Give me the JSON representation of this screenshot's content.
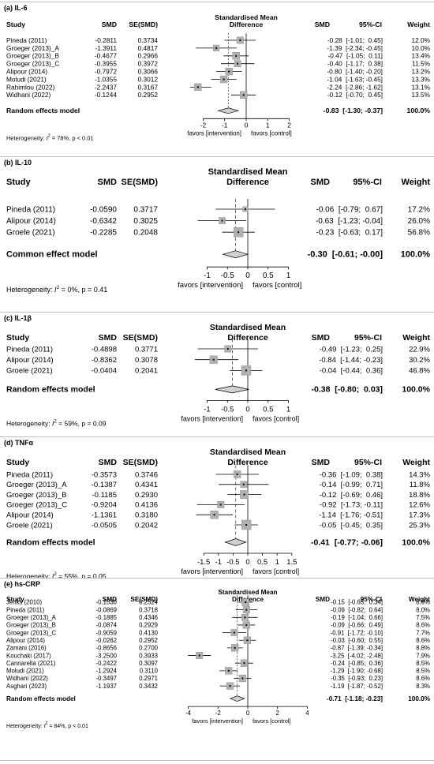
{
  "figure": {
    "title": ""
  },
  "columns": {
    "study": "Study",
    "smd": "SMD",
    "se": "SE(SMD)",
    "header_line1": "Standardised Mean",
    "header_line2": "Difference",
    "smd_ci": "SMD",
    "ci": "95%-CI",
    "weight": "Weight"
  },
  "chart_data": [
    {
      "type": "forest",
      "label": "(a) IL-6",
      "header_line1": "Standardised Mean",
      "header_line2": "Difference",
      "studies": [
        {
          "study": "Pineda (2011)",
          "smd": "-0.2811",
          "se": "0.3734",
          "est": -0.28,
          "lo": -1.01,
          "hi": 0.45,
          "ci_text": "-0.28  [-1.01;  0.45]",
          "weight": "12.0%",
          "w": 12.0
        },
        {
          "study": "Groeger (2013)_A",
          "smd": "-1.3911",
          "se": "0.4817",
          "est": -1.39,
          "lo": -2.34,
          "hi": -0.45,
          "ci_text": "-1.39  [-2.34; -0.45]",
          "weight": "10.0%",
          "w": 10.0
        },
        {
          "study": "Groeger (2013)_B",
          "smd": "-0.4677",
          "se": "0.2966",
          "est": -0.47,
          "lo": -1.05,
          "hi": 0.11,
          "ci_text": "-0.47  [-1.05;  0.11]",
          "weight": "13.4%",
          "w": 13.4
        },
        {
          "study": "Groeger (2013)_C",
          "smd": "-0.3955",
          "se": "0.3972",
          "est": -0.4,
          "lo": -1.17,
          "hi": 0.38,
          "ci_text": "-0.40  [-1.17;  0.38]",
          "weight": "11.5%",
          "w": 11.5
        },
        {
          "study": "Alipour (2014)",
          "smd": "-0.7972",
          "se": "0.3066",
          "est": -0.8,
          "lo": -1.4,
          "hi": -0.2,
          "ci_text": "-0.80  [-1.40; -0.20]",
          "weight": "13.2%",
          "w": 13.2
        },
        {
          "study": "Moludi (2021)",
          "smd": "-1.0355",
          "se": "0.3012",
          "est": -1.04,
          "lo": -1.63,
          "hi": -0.45,
          "ci_text": "-1.04  [-1.63; -0.45]",
          "weight": "13.3%",
          "w": 13.3
        },
        {
          "study": "Rahimlou (2022)",
          "smd": "-2.2437",
          "se": "0.3167",
          "est": -2.24,
          "lo": -2.86,
          "hi": -1.62,
          "ci_text": "-2.24  [-2.86; -1.62]",
          "weight": "13.1%",
          "w": 13.1
        },
        {
          "study": "Widhani (2022)",
          "smd": "-0.1244",
          "se": "0.2952",
          "est": -0.12,
          "lo": -0.7,
          "hi": 0.45,
          "ci_text": "-0.12  [-0.70;  0.45]",
          "weight": "13.5%",
          "w": 13.5
        }
      ],
      "pooled": {
        "label": "Random effects model",
        "est": -0.83,
        "lo": -1.3,
        "hi": -0.37,
        "ci_text": "-0.83  [-1.30; -0.37]",
        "weight": "100.0%"
      },
      "xlim": [
        -2.6,
        2.6
      ],
      "ticks": [
        -2,
        -1,
        0,
        1,
        2
      ],
      "favors_left": "favors [intervention]",
      "favors_right": "favors [control]",
      "heterogeneity_prefix": "Heterogeneity: ",
      "heterogeneity_stat": "I",
      "heterogeneity_sup": "2",
      "heterogeneity_rest": " = 78%, p < 0.01",
      "i2": 78,
      "p": "< 0.01",
      "dashed_ref": false
    },
    {
      "type": "forest",
      "label": "(b) IL-10",
      "header_line1": "Standardised Mean",
      "header_line2": "Difference",
      "studies": [
        {
          "study": "Pineda (2011)",
          "smd": "-0.0590",
          "se": "0.3717",
          "est": -0.06,
          "lo": -0.79,
          "hi": 0.67,
          "ci_text": "-0.06  [-0.79;  0.67]",
          "weight": "17.2%",
          "w": 17.2
        },
        {
          "study": "Alipour (2014)",
          "smd": "-0.6342",
          "se": "0.3025",
          "est": -0.63,
          "lo": -1.23,
          "hi": -0.04,
          "ci_text": "-0.63  [-1.23; -0.04]",
          "weight": "26.0%",
          "w": 26.0
        },
        {
          "study": "Groele (2021)",
          "smd": "-0.2285",
          "se": "0.2048",
          "est": -0.23,
          "lo": -0.63,
          "hi": 0.17,
          "ci_text": "-0.23  [-0.63;  0.17]",
          "weight": "56.8%",
          "w": 56.8
        }
      ],
      "pooled": {
        "label": "Common effect model",
        "est": -0.3,
        "lo": -0.61,
        "hi": -0.0,
        "ci_text": "-0.30  [-0.61; -0.00]",
        "weight": "100.0%"
      },
      "xlim": [
        -1.3,
        1.3
      ],
      "ticks": [
        -1,
        -0.5,
        0,
        0.5,
        1
      ],
      "favors_left": "favors [intervention]",
      "favors_right": "favors [control]",
      "heterogeneity_prefix": "Heterogeneity: ",
      "heterogeneity_stat": "I",
      "heterogeneity_sup": "2",
      "heterogeneity_rest": " = 0%, p = 0.41",
      "i2": 0,
      "p": "0.41",
      "dashed_ref": true
    },
    {
      "type": "forest",
      "label": "(c) IL-1β",
      "header_line1": "Standardised Mean",
      "header_line2": "Difference",
      "studies": [
        {
          "study": "Pineda (2011)",
          "smd": "-0.4898",
          "se": "0.3771",
          "est": -0.49,
          "lo": -1.23,
          "hi": 0.25,
          "ci_text": "-0.49  [-1.23;  0.25]",
          "weight": "22.9%",
          "w": 22.9
        },
        {
          "study": "Alipour (2014)",
          "smd": "-0.8362",
          "se": "0.3078",
          "est": -0.84,
          "lo": -1.44,
          "hi": -0.23,
          "ci_text": "-0.84  [-1.44; -0.23]",
          "weight": "30.2%",
          "w": 30.2
        },
        {
          "study": "Groele (2021)",
          "smd": "-0.0404",
          "se": "0.2041",
          "est": -0.04,
          "lo": -0.44,
          "hi": 0.36,
          "ci_text": "-0.04  [-0.44;  0.36]",
          "weight": "46.8%",
          "w": 46.8
        }
      ],
      "pooled": {
        "label": "Random effects model",
        "est": -0.38,
        "lo": -0.8,
        "hi": 0.03,
        "ci_text": "-0.38  [-0.80;  0.03]",
        "weight": "100.0%"
      },
      "xlim": [
        -1.3,
        1.3
      ],
      "ticks": [
        -1,
        -0.5,
        0,
        0.5,
        1
      ],
      "favors_left": "favors [intervention]",
      "favors_right": "favors [control]",
      "heterogeneity_prefix": "Heterogeneity: ",
      "heterogeneity_stat": "I",
      "heterogeneity_sup": "2",
      "heterogeneity_rest": " = 59%, p = 0.09",
      "i2": 59,
      "p": "0.09",
      "dashed_ref": true
    },
    {
      "type": "forest",
      "label": "(d) TNFα",
      "header_line1": "Standardised Mean",
      "header_line2": "Difference",
      "studies": [
        {
          "study": "Pineda (2011)",
          "smd": "-0.3573",
          "se": "0.3746",
          "est": -0.36,
          "lo": -1.09,
          "hi": 0.38,
          "ci_text": "-0.36  [-1.09;  0.38]",
          "weight": "14.3%",
          "w": 14.3
        },
        {
          "study": "Groeger (2013)_A",
          "smd": "-0.1387",
          "se": "0.4341",
          "est": -0.14,
          "lo": -0.99,
          "hi": 0.71,
          "ci_text": "-0.14  [-0.99;  0.71]",
          "weight": "11.8%",
          "w": 11.8
        },
        {
          "study": "Groeger (2013)_B",
          "smd": "-0.1185",
          "se": "0.2930",
          "est": -0.12,
          "lo": -0.69,
          "hi": 0.46,
          "ci_text": "-0.12  [-0.69;  0.46]",
          "weight": "18.8%",
          "w": 18.8
        },
        {
          "study": "Groeger (2013)_C",
          "smd": "-0.9204",
          "se": "0.4136",
          "est": -0.92,
          "lo": -1.73,
          "hi": -0.11,
          "ci_text": "-0.92  [-1.73; -0.11]",
          "weight": "12.6%",
          "w": 12.6
        },
        {
          "study": "Alipour (2014)",
          "smd": "-1.1361",
          "se": "0.3180",
          "est": -1.14,
          "lo": -1.76,
          "hi": -0.51,
          "ci_text": "-1.14  [-1.76; -0.51]",
          "weight": "17.3%",
          "w": 17.3
        },
        {
          "study": "Groele (2021)",
          "smd": "-0.0505",
          "se": "0.2042",
          "est": -0.05,
          "lo": -0.45,
          "hi": 0.35,
          "ci_text": "-0.05  [-0.45;  0.35]",
          "weight": "25.3%",
          "w": 25.3
        }
      ],
      "pooled": {
        "label": "Random effects model",
        "est": -0.41,
        "lo": -0.77,
        "hi": -0.06,
        "ci_text": "-0.41  [-0.77; -0.06]",
        "weight": "100.0%"
      },
      "xlim": [
        -1.8,
        1.8
      ],
      "ticks": [
        -1.5,
        -1,
        -0.5,
        0,
        0.5,
        1,
        1.5
      ],
      "favors_left": "favors [intervention]",
      "favors_right": "favors [control]",
      "heterogeneity_prefix": "Heterogeneity: ",
      "heterogeneity_stat": "I",
      "heterogeneity_sup": "2",
      "heterogeneity_rest": " = 55%, p = 0.05",
      "i2": 55,
      "p": "0.05",
      "dashed_ref": true
    },
    {
      "type": "forest",
      "label": "(e) hs-CRP",
      "header_line1": "Standardised Mean",
      "header_line2": "Difference",
      "studies": [
        {
          "study": "Jenks (2010)",
          "smd": "-0.1530",
          "se": "0.2524",
          "est": -0.15,
          "lo": -0.65,
          "hi": 0.34,
          "ci_text": "-0.15  [-0.65;  0.34]",
          "weight": "8.9%",
          "w": 8.9
        },
        {
          "study": "Pineda (2011)",
          "smd": "-0.0869",
          "se": "0.3718",
          "est": -0.09,
          "lo": -0.82,
          "hi": 0.64,
          "ci_text": "-0.09  [-0.82;  0.64]",
          "weight": "8.0%",
          "w": 8.0
        },
        {
          "study": "Groeger (2013)_A",
          "smd": "-0.1885",
          "se": "0.4346",
          "est": -0.19,
          "lo": -1.04,
          "hi": 0.66,
          "ci_text": "-0.19  [-1.04;  0.66]",
          "weight": "7.5%",
          "w": 7.5
        },
        {
          "study": "Groeger (2013)_B",
          "smd": "-0.0874",
          "se": "0.2929",
          "est": -0.09,
          "lo": -0.66,
          "hi": 0.49,
          "ci_text": "-0.09  [-0.66;  0.49]",
          "weight": "8.6%",
          "w": 8.6
        },
        {
          "study": "Groeger (2013)_C",
          "smd": "-0.9059",
          "se": "0.4130",
          "est": -0.91,
          "lo": -1.72,
          "hi": -0.1,
          "ci_text": "-0.91  [-1.72; -0.10]",
          "weight": "7.7%",
          "w": 7.7
        },
        {
          "study": "Alipour (2014)",
          "smd": "-0.0262",
          "se": "0.2952",
          "est": -0.03,
          "lo": -0.6,
          "hi": 0.55,
          "ci_text": "-0.03  [-0.60;  0.55]",
          "weight": "8.6%",
          "w": 8.6
        },
        {
          "study": "Zamani (2016)",
          "smd": "-0.8656",
          "se": "0.2700",
          "est": -0.87,
          "lo": -1.39,
          "hi": -0.34,
          "ci_text": "-0.87  [-1.39; -0.34]",
          "weight": "8.8%",
          "w": 8.8
        },
        {
          "study": "Kouchaki (2017)",
          "smd": "-3.2500",
          "se": "0.3933",
          "est": -3.25,
          "lo": -4.02,
          "hi": -2.48,
          "ci_text": "-3.25  [-4.02; -2.48]",
          "weight": "7.9%",
          "w": 7.9
        },
        {
          "study": "Cannarella (2021)",
          "smd": "-0.2422",
          "se": "0.3097",
          "est": -0.24,
          "lo": -0.85,
          "hi": 0.36,
          "ci_text": "-0.24  [-0.85;  0.36]",
          "weight": "8.5%",
          "w": 8.5
        },
        {
          "study": "Moludi (2021)",
          "smd": "-1.2924",
          "se": "0.3110",
          "est": -1.29,
          "lo": -1.9,
          "hi": -0.68,
          "ci_text": "-1.29  [-1.90; -0.68]",
          "weight": "8.5%",
          "w": 8.5
        },
        {
          "study": "Widhani (2022)",
          "smd": "-0.3497",
          "se": "0.2971",
          "est": -0.35,
          "lo": -0.93,
          "hi": 0.23,
          "ci_text": "-0.35  [-0.93;  0.23]",
          "weight": "8.6%",
          "w": 8.6
        },
        {
          "study": "Asghari (2023)",
          "smd": "-1.1937",
          "se": "0.3432",
          "est": -1.19,
          "lo": -1.87,
          "hi": -0.52,
          "ci_text": "-1.19  [-1.87; -0.52]",
          "weight": "8.3%",
          "w": 8.3
        }
      ],
      "pooled": {
        "label": "Random effects model",
        "est": -0.71,
        "lo": -1.18,
        "hi": -0.23,
        "ci_text": "-0.71  [-1.18; -0.23]",
        "weight": "100.0%"
      },
      "xlim": [
        -4.4,
        4.4
      ],
      "ticks": [
        -4,
        -2,
        0,
        2,
        4
      ],
      "favors_left": "favors [intervention]",
      "favors_right": "favors [control]",
      "heterogeneity_prefix": "Heterogeneity: ",
      "heterogeneity_stat": "I",
      "heterogeneity_sup": "2",
      "heterogeneity_rest": " = 84%, p < 0.01",
      "i2": 84,
      "p": "< 0.01",
      "dashed_ref": false
    }
  ]
}
